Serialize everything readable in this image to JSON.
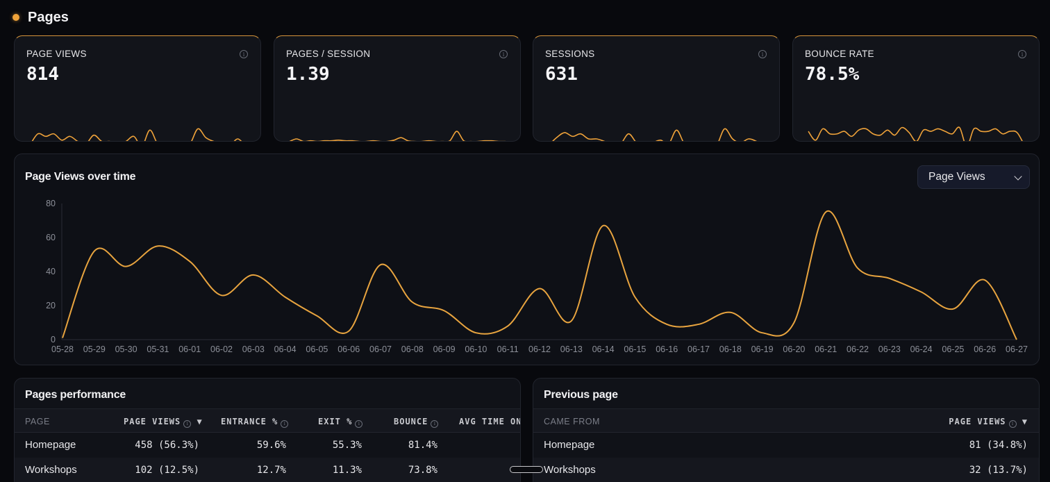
{
  "page": {
    "title": "Pages",
    "accent": "#f0a33a"
  },
  "stats": [
    {
      "label": "PAGE VIEWS",
      "value": "814",
      "spark": [
        12,
        30,
        26,
        30,
        20,
        26,
        18,
        14,
        28,
        18,
        18,
        14,
        18,
        26,
        10,
        36,
        14,
        16,
        14,
        16,
        14,
        38,
        24,
        18,
        16,
        12,
        22,
        10
      ]
    },
    {
      "label": "PAGES / SESSION",
      "value": "1.39",
      "spark": [
        18,
        22,
        18,
        19,
        18,
        19,
        19,
        20,
        19,
        19,
        18,
        18,
        19,
        18,
        18,
        20,
        24,
        19,
        18,
        18,
        19,
        18,
        18,
        19,
        34,
        19,
        18,
        18,
        19,
        19,
        18,
        18
      ]
    },
    {
      "label": "SESSIONS",
      "value": "631",
      "spark": [
        12,
        24,
        32,
        26,
        30,
        22,
        22,
        18,
        12,
        14,
        30,
        16,
        12,
        16,
        20,
        14,
        36,
        14,
        12,
        16,
        14,
        12,
        38,
        22,
        16,
        22,
        18,
        10
      ]
    },
    {
      "label": "BOUNCE RATE",
      "value": "78.5%",
      "spark": [
        34,
        20,
        38,
        30,
        30,
        34,
        26,
        36,
        38,
        30,
        28,
        36,
        28,
        40,
        32,
        18,
        36,
        34,
        38,
        34,
        30,
        40,
        10,
        38,
        34,
        34,
        38,
        30,
        34,
        32,
        12
      ]
    }
  ],
  "main_chart": {
    "title": "Page Views over time",
    "selector": "Page Views"
  },
  "chart_data": {
    "type": "line",
    "title": "Page Views over time",
    "xlabel": "",
    "ylabel": "",
    "ylim": [
      0,
      80
    ],
    "yticks": [
      "0",
      "20",
      "40",
      "60",
      "80"
    ],
    "categories": [
      "05-28",
      "05-29",
      "05-30",
      "05-31",
      "06-01",
      "06-02",
      "06-03",
      "06-04",
      "06-05",
      "06-06",
      "06-07",
      "06-08",
      "06-09",
      "06-10",
      "06-11",
      "06-12",
      "06-13",
      "06-14",
      "06-15",
      "06-16",
      "06-17",
      "06-18",
      "06-19",
      "06-20",
      "06-21",
      "06-22",
      "06-23",
      "06-24",
      "06-25",
      "06-26",
      "06-27"
    ],
    "series": [
      {
        "values": [
          1,
          52,
          43,
          55,
          46,
          26,
          38,
          25,
          14,
          5,
          44,
          22,
          17,
          4,
          8,
          30,
          11,
          67,
          25,
          9,
          9,
          16,
          4,
          10,
          75,
          42,
          36,
          28,
          18,
          35,
          0
        ],
        "color": "#e8a43f"
      }
    ],
    "grid": false
  },
  "performance": {
    "title": "Pages performance",
    "headers": [
      "PAGE",
      "PAGE VIEWS",
      "ENTRANCE %",
      "EXIT %",
      "BOUNCE",
      "AVG TIME ON"
    ],
    "info_glyph": "i",
    "sort_glyph": "▼",
    "rows": [
      {
        "page": "Homepage",
        "views": "458 (56.3%)",
        "entrance": "59.6%",
        "exit": "55.3%",
        "bounce": "81.4%"
      },
      {
        "page": "Workshops",
        "views": "102 (12.5%)",
        "entrance": "12.7%",
        "exit": "11.3%",
        "bounce": "73.8%"
      }
    ]
  },
  "previous": {
    "title": "Previous page",
    "headers": [
      "CAME FROM",
      "PAGE VIEWS"
    ],
    "rows": [
      {
        "from": "Homepage",
        "views": "81 (34.8%)"
      },
      {
        "from": "Workshops",
        "views": "32 (13.7%)"
      }
    ]
  }
}
